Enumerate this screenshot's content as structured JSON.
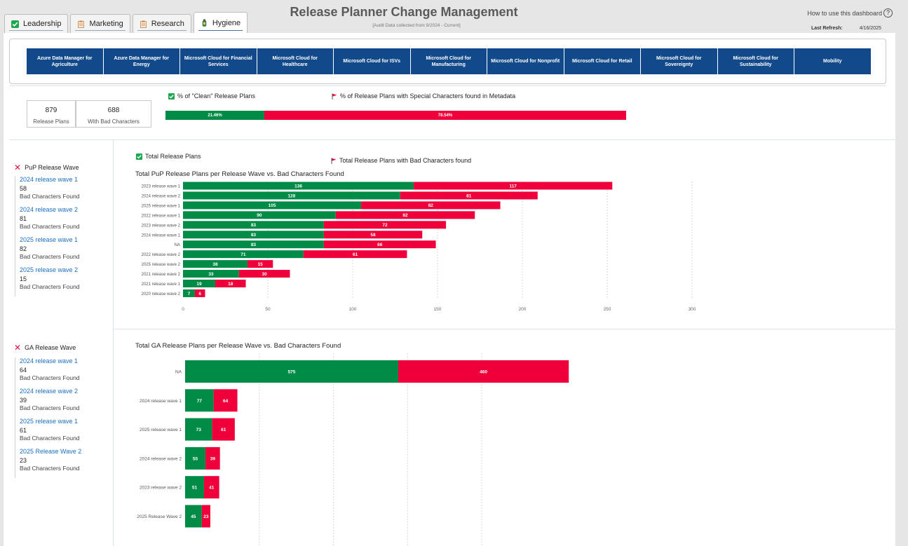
{
  "tabs": [
    {
      "label": "Leadership",
      "icon": "checkbox-icon",
      "active": false
    },
    {
      "label": "Marketing",
      "icon": "clipboard-icon",
      "active": false
    },
    {
      "label": "Research",
      "icon": "clipboard-icon",
      "active": false
    },
    {
      "label": "Hygiene",
      "icon": "bottle-icon",
      "active": true
    }
  ],
  "header": {
    "title": "Release Planner Change Management",
    "subtitle": "[Audit Data collected from 9/2024 - Current]",
    "help_label": "How to use this dashboard",
    "help_icon": "?",
    "refresh_label": "Last Refresh:",
    "refresh_value": "4/16/2025"
  },
  "products": [
    "Azure Data Manager for Agriculture",
    "Azure Data Manager for Energy",
    "Microsoft Cloud for Financial Services",
    "Microsoft Cloud for Healthcare",
    "Microsoft Cloud for ISVs",
    "Microsoft Cloud for Manufacturing",
    "Microsoft Cloud for Nonprofit",
    "Microsoft Cloud for Retail",
    "Microsoft Cloud for Sovereignty",
    "Microsoft Cloud for Sustainability",
    "Mobility"
  ],
  "cards": {
    "release_plans_value": "879",
    "release_plans_label": "Release Plans",
    "bad_value": "688",
    "bad_label": "With Bad Characters"
  },
  "pct": {
    "clean_legend": "% of \"Clean\" Release Plans",
    "special_legend": "% of Release Plans with Special Characters found in Metadata",
    "clean_value": 21.46,
    "clean_label": "21.46%",
    "special_value": 78.54,
    "special_label": "78.54%"
  },
  "legends": {
    "total": "Total Release Plans",
    "bad": "Total Release Plans with Bad Characters found"
  },
  "pup": {
    "header": "PuP Release Wave",
    "items": [
      {
        "name": "2024 release wave 1",
        "value": "58",
        "label": "Bad Characters Found"
      },
      {
        "name": "2024 release wave 2",
        "value": "81",
        "label": "Bad Characters Found"
      },
      {
        "name": "2025 release wave 1",
        "value": "82",
        "label": "Bad Characters Found"
      },
      {
        "name": "2025 release wave 2",
        "value": "15",
        "label": "Bad Characters Found"
      }
    ]
  },
  "ga": {
    "header": "GA Release Wave",
    "items": [
      {
        "name": "2024 release wave 1",
        "value": "64",
        "label": "Bad Characters Found"
      },
      {
        "name": "2024 release wave 2",
        "value": "39",
        "label": "Bad Characters Found"
      },
      {
        "name": "2025 release wave 1",
        "value": "61",
        "label": "Bad Characters Found"
      },
      {
        "name": "2025 Release Wave 2",
        "value": "23",
        "label": "Bad Characters Found"
      }
    ]
  },
  "colors": {
    "green": "#008c47",
    "red": "#f0003a",
    "navy": "#12498a"
  },
  "chart_data": [
    {
      "type": "bar",
      "orientation": "horizontal",
      "stacked": true,
      "title": "Total PuP Release Plans per Release Wave vs. Bad Characters Found",
      "categories": [
        "2023 release wave 1",
        "2024 release wave 2",
        "2025 release wave 1",
        "2022 release wave 1",
        "2023 release wave 2",
        "2024 release wave 1",
        "NA",
        "2022 release wave 2",
        "2025 release wave 2",
        "2021 release wave 2",
        "2021 release wave 1",
        "2020 release wave 2"
      ],
      "series": [
        {
          "name": "Total Release Plans",
          "values": [
            136,
            128,
            105,
            90,
            83,
            83,
            83,
            71,
            38,
            33,
            19,
            7
          ]
        },
        {
          "name": "Total Release Plans with Bad Characters found",
          "values": [
            117,
            81,
            82,
            82,
            72,
            58,
            66,
            61,
            15,
            30,
            18,
            6
          ]
        }
      ],
      "xticks": [
        0,
        50,
        100,
        150,
        200,
        250,
        300
      ],
      "xlim": [
        0,
        300
      ],
      "grid": true
    },
    {
      "type": "bar",
      "orientation": "horizontal",
      "stacked": true,
      "title": "Total GA Release Plans per Release Wave vs. Bad Characters Found",
      "categories": [
        "NA",
        "2024 release wave 1",
        "2025 release wave 1",
        "2024 release wave 2",
        "2023 release wave 2",
        "2025 Release Wave 2"
      ],
      "series": [
        {
          "name": "Total Release Plans",
          "values": [
            575,
            77,
            73,
            55,
            51,
            45
          ]
        },
        {
          "name": "Total Release Plans with Bad Characters found",
          "values": [
            460,
            64,
            61,
            39,
            41,
            23
          ]
        }
      ],
      "grid": true
    }
  ]
}
